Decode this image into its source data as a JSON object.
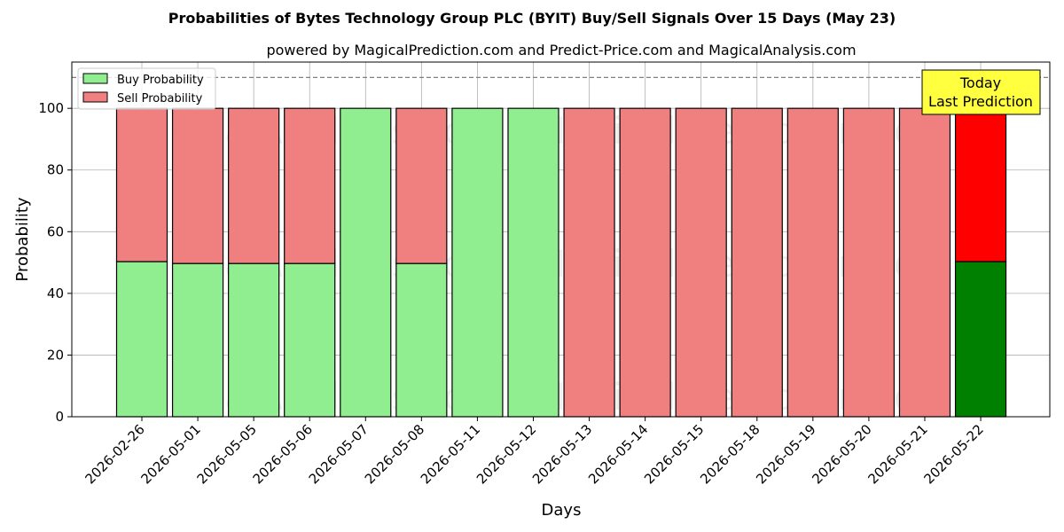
{
  "chart_data": {
    "type": "bar",
    "stacked": true,
    "title": "Probabilities of Bytes Technology Group PLC (BYIT) Buy/Sell Signals Over 15 Days (May 23)",
    "subtitle": "powered by MagicalPrediction.com and Predict-Price.com and MagicalAnalysis.com",
    "xlabel": "Days",
    "ylabel": "Probability",
    "ylim": [
      0,
      115
    ],
    "yticks": [
      0,
      20,
      40,
      60,
      80,
      100
    ],
    "grid": true,
    "legend_position": "top-left",
    "reference_line": 110,
    "categories": [
      "2026-02-26",
      "2026-05-01",
      "2026-05-05",
      "2026-05-06",
      "2026-05-07",
      "2026-05-08",
      "2026-05-11",
      "2026-05-12",
      "2026-05-13",
      "2026-05-14",
      "2026-05-15",
      "2026-05-18",
      "2026-05-19",
      "2026-05-20",
      "2026-05-21",
      "2026-05-22"
    ],
    "series": [
      {
        "name": "Buy Probability",
        "color": "#90ee90",
        "highlight_color": "#008000",
        "values": [
          50.3,
          49.7,
          49.7,
          49.7,
          100,
          49.7,
          100,
          100,
          0,
          0,
          0,
          0,
          0,
          0,
          0,
          50.3
        ]
      },
      {
        "name": "Sell Probability",
        "color": "#f08080",
        "highlight_color": "#ff0000",
        "values": [
          49.7,
          50.3,
          50.3,
          50.3,
          0,
          50.3,
          0,
          0,
          100,
          100,
          100,
          100,
          100,
          100,
          100,
          49.7
        ]
      }
    ],
    "highlight_index": 15,
    "annotation": {
      "lines": [
        "Today",
        "Last Prediction"
      ],
      "color": "#ffff40"
    },
    "watermarks": [
      "MagicalAnalysis.com",
      "MagicalPrediction.com"
    ]
  }
}
